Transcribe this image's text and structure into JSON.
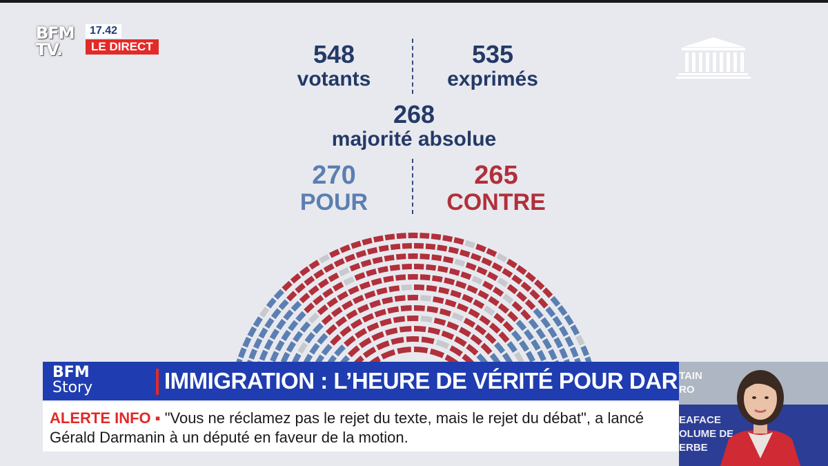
{
  "channel": {
    "logo_line1": "BFM",
    "logo_line2": "TV.",
    "time": "17.42",
    "live": "LE DIRECT"
  },
  "vote": {
    "votants_num": "548",
    "votants_label": "votants",
    "exprimes_num": "535",
    "exprimes_label": "exprimés",
    "majorite_num": "268",
    "majorite_label": "majorité absolue",
    "pour_num": "270",
    "pour_label": "POUR",
    "contre_num": "265",
    "contre_label": "CONTRE",
    "colors": {
      "pour": "#5b7fb2",
      "contre": "#b0303b",
      "abstention": "#c7c9cf"
    }
  },
  "icons": {
    "assembly": "assembly-building-icon"
  },
  "lower_third": {
    "logo_line1": "BFM",
    "logo_line2": "Story",
    "headline": "IMMIGRATION : L’HEURE DE VÉRITÉ POUR DARMANIN",
    "alert_label": "ALERTE INFO ▪",
    "alert_text": " \"Vous ne réclamez pas le rejet du texte, mais le rejet du débat\", a lancé Gérald Darmanin à un député en faveur de la motion."
  },
  "guest_panel": {
    "text_top_1": "TAIN",
    "text_top_2": "RO",
    "text_mid_1": "EAFACE",
    "text_mid_2": "OLUME DE",
    "text_mid_3": "ERBE"
  }
}
